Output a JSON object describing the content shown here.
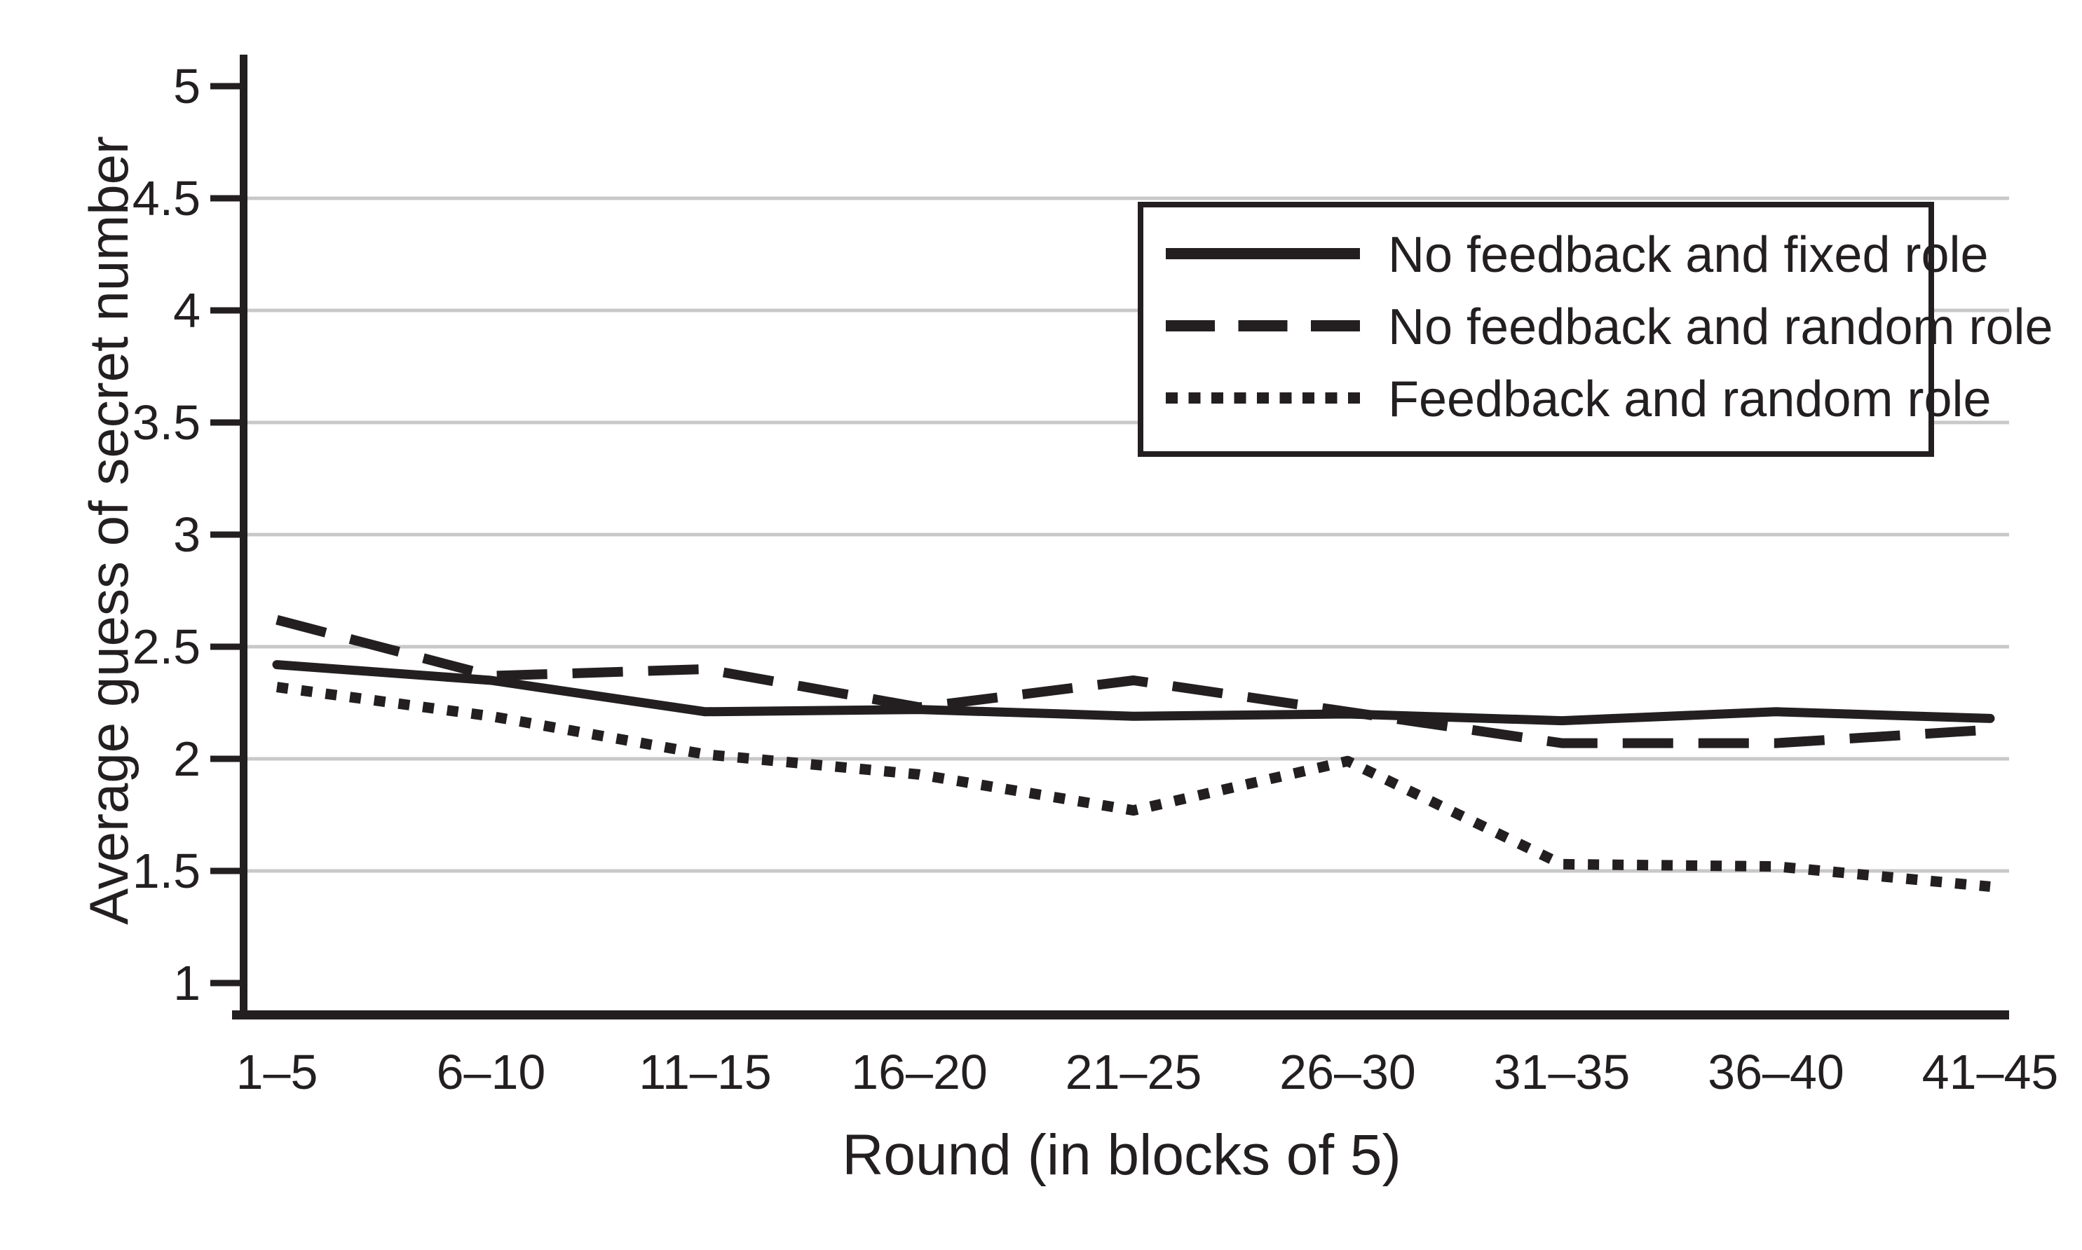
{
  "figure": {
    "background": "#ffffff"
  },
  "chart_data": {
    "type": "line",
    "title": "",
    "xlabel": "Round (in blocks of 5)",
    "ylabel": "Average guess of secret number",
    "categories": [
      "1–5",
      "6–10",
      "11–15",
      "16–20",
      "21–25",
      "26–30",
      "31–35",
      "36–40",
      "41–45"
    ],
    "y_ticks": [
      5,
      4.5,
      4,
      3.5,
      3,
      2.5,
      2,
      1.5,
      1
    ],
    "y_tick_labels": [
      "5",
      "4.5",
      "4",
      "3.5",
      "3",
      "2.5",
      "2",
      "1.5",
      "1"
    ],
    "ylim": [
      0.87,
      5.14
    ],
    "grid_values": [
      4.5,
      4,
      3.5,
      3,
      2.5,
      2,
      1.5
    ],
    "grid": "horizontal",
    "legend_position": "top-right-inside",
    "series": [
      {
        "name": "No feedback and fixed role",
        "line_style": "solid",
        "values": [
          2.42,
          2.35,
          2.21,
          2.22,
          2.19,
          2.2,
          2.17,
          2.21,
          2.18
        ]
      },
      {
        "name": "No feedback and random role",
        "line_style": "dashed",
        "values": [
          2.62,
          2.37,
          2.4,
          2.23,
          2.35,
          2.21,
          2.07,
          2.07,
          2.13
        ]
      },
      {
        "name": "Feedback and random role",
        "line_style": "dotted",
        "values": [
          2.32,
          2.19,
          2.02,
          1.93,
          1.77,
          1.99,
          1.53,
          1.52,
          1.43
        ]
      }
    ],
    "colors": {
      "line": "#231f20",
      "grid": "#c8c8c8",
      "text": "#231f20",
      "background": "#ffffff"
    }
  }
}
